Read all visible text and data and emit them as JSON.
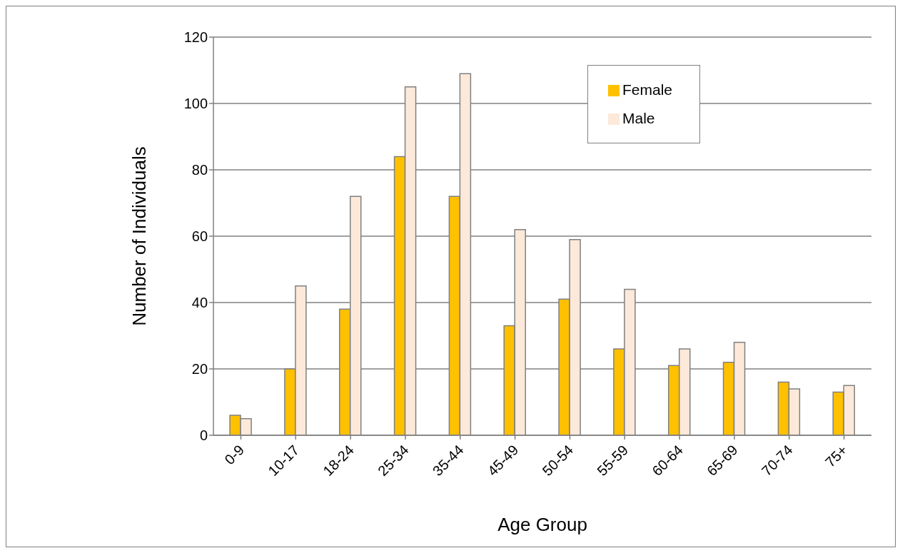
{
  "chart_data": {
    "type": "bar",
    "xlabel": "Age Group",
    "ylabel": "Number of Individuals",
    "categories": [
      "0-9",
      "10-17",
      "18-24",
      "25-34",
      "35-44",
      "45-49",
      "50-54",
      "55-59",
      "60-64",
      "65-69",
      "70-74",
      "75+"
    ],
    "series": [
      {
        "name": "Female",
        "color": "#ffc000",
        "values": [
          6,
          20,
          38,
          84,
          72,
          33,
          41,
          26,
          21,
          22,
          16,
          13
        ]
      },
      {
        "name": "Male",
        "color": "#fde9d9",
        "values": [
          5,
          45,
          72,
          105,
          109,
          62,
          59,
          44,
          26,
          28,
          14,
          15
        ]
      }
    ],
    "ylim": [
      0,
      120
    ],
    "yticks": [
      0,
      20,
      40,
      60,
      80,
      100,
      120
    ],
    "grid": "y",
    "legend": "top right"
  }
}
